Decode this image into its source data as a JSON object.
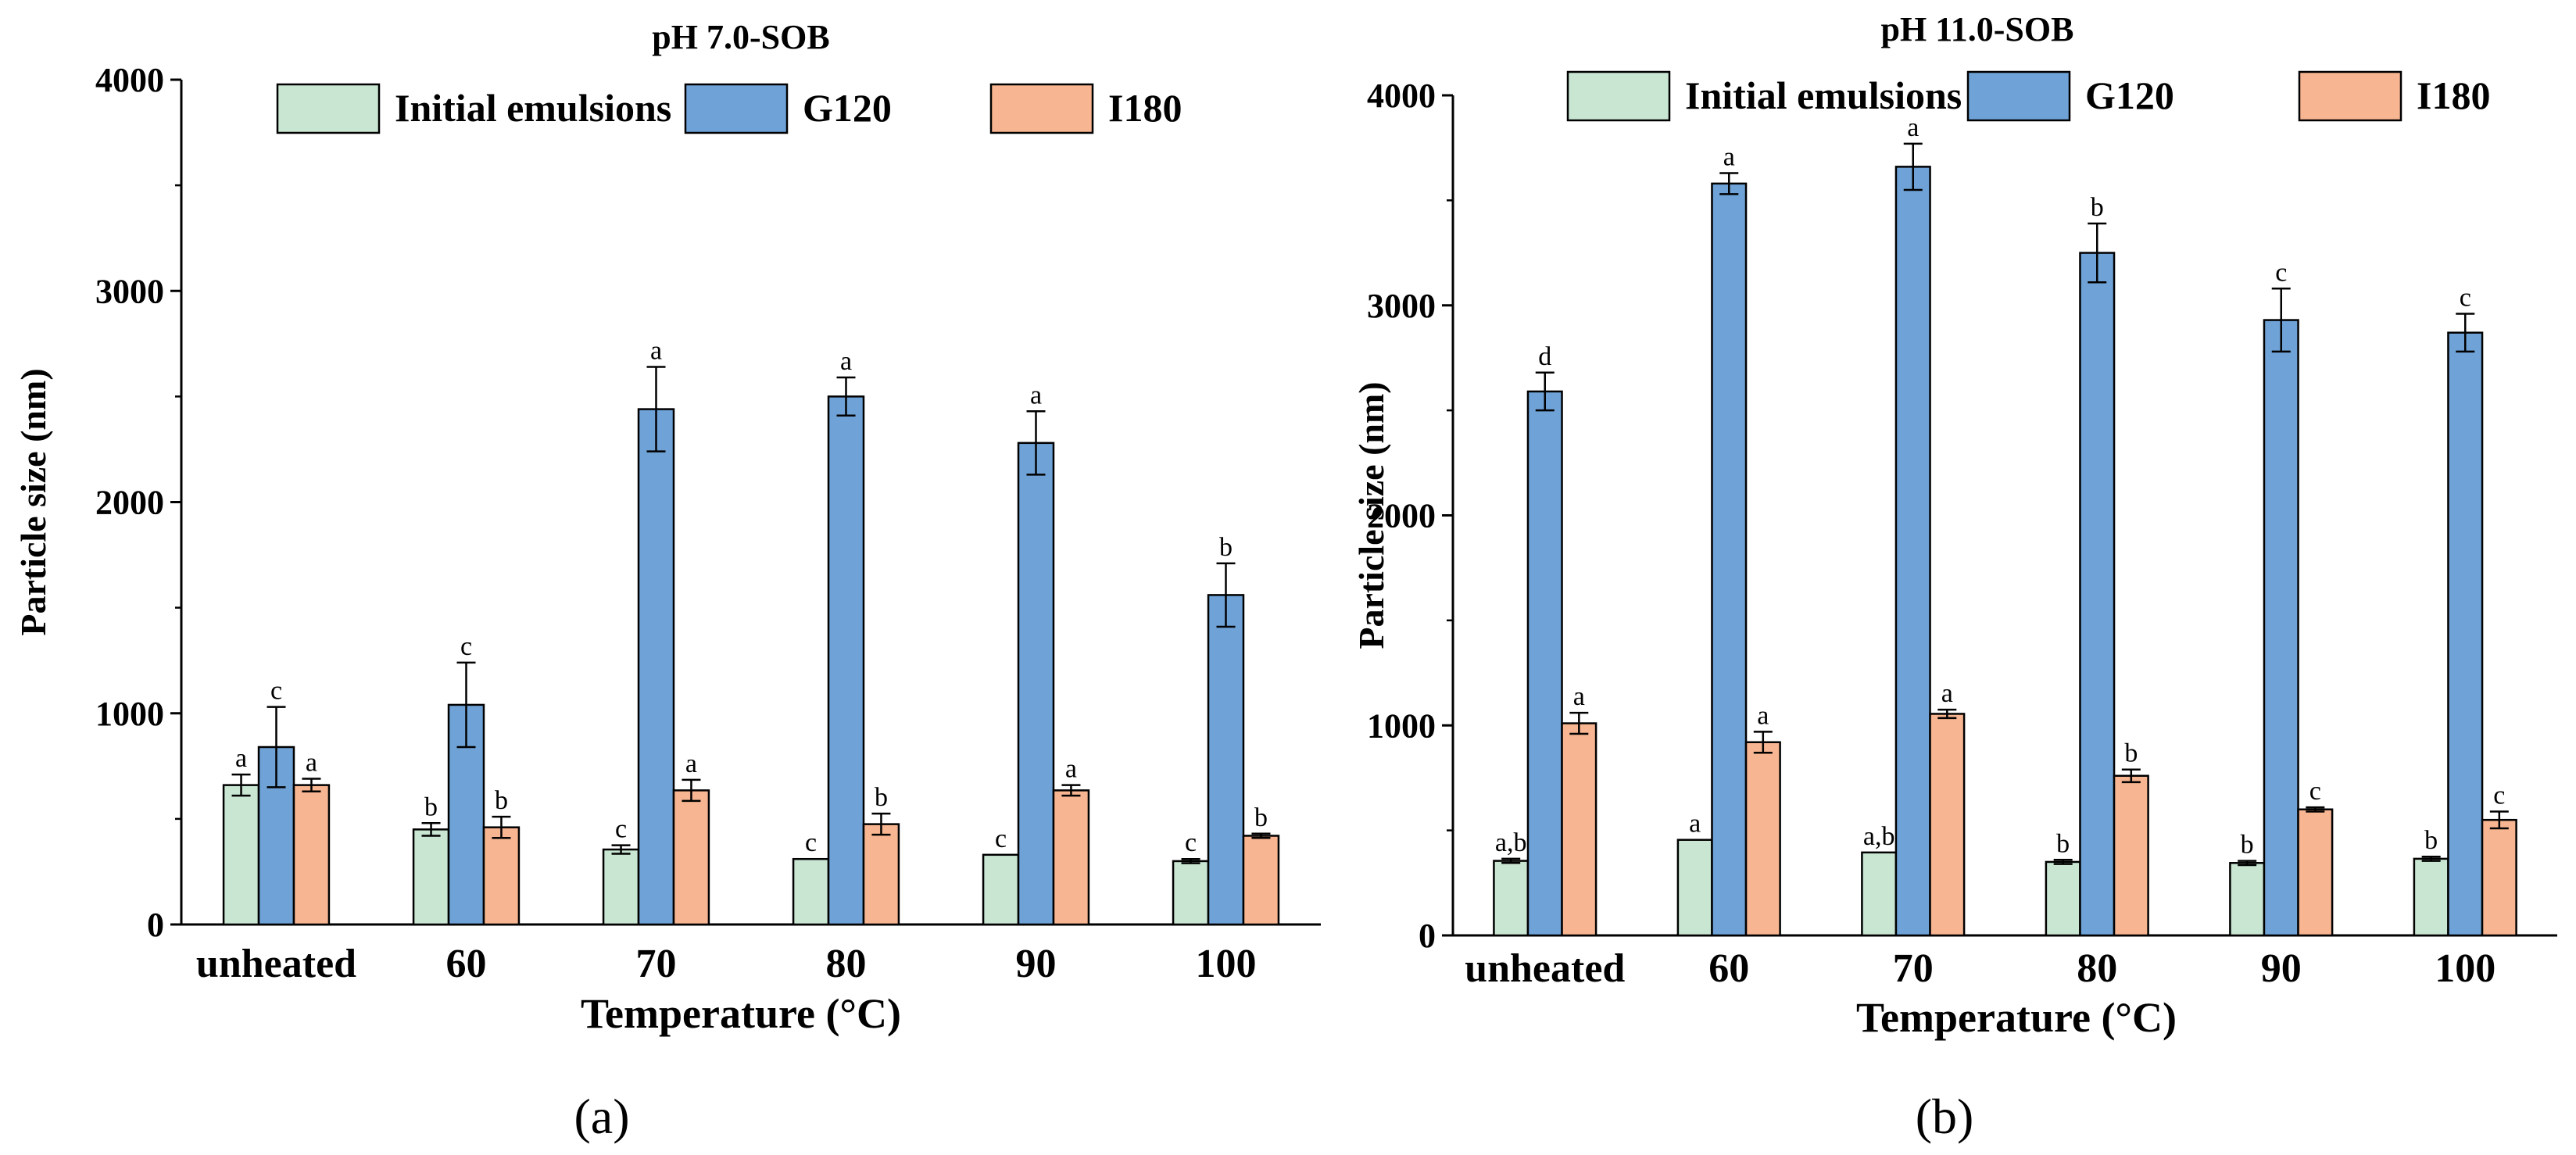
{
  "figure": {
    "panels": [
      "(a)",
      "(b)"
    ]
  },
  "chart_data": [
    {
      "type": "bar",
      "title": "pH 7.0-SOB",
      "panel_label": "(a)",
      "xlabel": "Temperature (°C)",
      "ylabel": "Particle size (nm)",
      "ylim": [
        0,
        4000
      ],
      "yticks": [
        0,
        1000,
        2000,
        3000,
        4000
      ],
      "categories": [
        "unheated",
        "60",
        "70",
        "80",
        "90",
        "100"
      ],
      "legend_position": "top",
      "series": [
        {
          "name": "Initial emulsions",
          "color": "#c9e6d3",
          "values": [
            660,
            450,
            355,
            310,
            330,
            300
          ],
          "errors": [
            50,
            30,
            20,
            0,
            0,
            10
          ],
          "labels": [
            "a",
            "b",
            "c",
            "c",
            "c",
            "c"
          ]
        },
        {
          "name": "G120",
          "color": "#6fa3d7",
          "values": [
            840,
            1040,
            2440,
            2500,
            2280,
            1560
          ],
          "errors": [
            190,
            200,
            200,
            90,
            150,
            150
          ],
          "labels": [
            "c",
            "c",
            "a",
            "a",
            "a",
            "b"
          ]
        },
        {
          "name": "I180",
          "color": "#f7b591",
          "values": [
            660,
            460,
            635,
            475,
            635,
            420
          ],
          "errors": [
            30,
            50,
            50,
            50,
            25,
            10
          ],
          "labels": [
            "a",
            "b",
            "a",
            "b",
            "a",
            "b"
          ]
        }
      ]
    },
    {
      "type": "bar",
      "title": "pH 11.0-SOB",
      "panel_label": "(b)",
      "xlabel": "Temperature (°C)",
      "ylabel": "Particle size (nm)",
      "ylim": [
        0,
        4000
      ],
      "yticks": [
        0,
        1000,
        2000,
        3000,
        4000
      ],
      "categories": [
        "unheated",
        "60",
        "70",
        "80",
        "90",
        "100"
      ],
      "legend_position": "top",
      "series": [
        {
          "name": "Initial emulsions",
          "color": "#c9e6d3",
          "values": [
            355,
            455,
            395,
            350,
            345,
            365
          ],
          "errors": [
            10,
            0,
            0,
            10,
            10,
            10
          ],
          "labels": [
            "a,b",
            "a",
            "a,b",
            "b",
            "b",
            "b"
          ]
        },
        {
          "name": "G120",
          "color": "#6fa3d7",
          "values": [
            2590,
            3580,
            3660,
            3250,
            2930,
            2870
          ],
          "errors": [
            90,
            50,
            110,
            140,
            150,
            90
          ],
          "labels": [
            "d",
            "a",
            "a",
            "b",
            "c",
            "c"
          ]
        },
        {
          "name": "I180",
          "color": "#f7b591",
          "values": [
            1010,
            920,
            1055,
            760,
            600,
            550
          ],
          "errors": [
            50,
            50,
            20,
            30,
            10,
            40
          ],
          "labels": [
            "a",
            "a",
            "a",
            "b",
            "c",
            "c"
          ]
        }
      ]
    }
  ]
}
